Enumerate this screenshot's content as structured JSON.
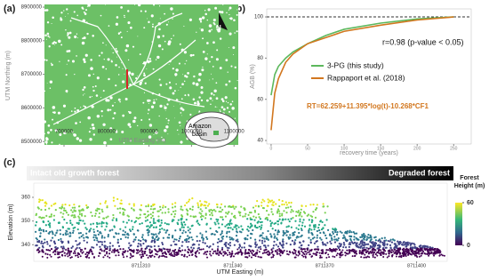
{
  "panel_labels": [
    "(a)",
    "(b)",
    "(c)"
  ],
  "map": {
    "x_label": "UTM Easting (m)",
    "y_label": "UTM Northing (m)",
    "xlim": [
      654000,
      1110000
    ],
    "xticks": [
      700000,
      800000,
      900000,
      1000000,
      1100000
    ],
    "ylim": [
      8490000,
      8908000
    ],
    "yticks": [
      8500000,
      8600000,
      8700000,
      8800000,
      8900000
    ],
    "north_label": "N",
    "inset_label": [
      "Amazon",
      "basin"
    ]
  },
  "chart_data": {
    "type": "line",
    "x_label": "recovery time (years)",
    "y_label": "AGB (%)",
    "x": [
      0,
      5,
      10,
      20,
      30,
      50,
      75,
      100,
      150,
      200,
      250
    ],
    "series": [
      {
        "name": "3-PG (this study)",
        "color": "#5cb85c",
        "values": [
          62,
          72,
          76,
          80,
          83,
          87,
          91,
          94,
          97,
          99,
          100
        ]
      },
      {
        "name": "Rappaport et al. (2018)",
        "color": "#d2771f",
        "values": [
          45,
          63,
          70,
          78,
          82,
          87,
          90,
          93,
          96,
          98.5,
          100
        ]
      }
    ],
    "xlim": [
      -6,
      274
    ],
    "xticks": [
      0,
      50,
      100,
      150,
      200,
      250
    ],
    "ylim": [
      38.3,
      103.9
    ],
    "yticks": [
      40,
      60,
      80,
      100
    ],
    "reference_line": 100,
    "annotations": [
      "r=0.98 (p-value < 0.05)",
      "RT=62.259+11.395*log(t)-10.268*CF1"
    ]
  },
  "point_cloud": {
    "banner_left": "Intact old growth forest",
    "banner_right": "Degraded forest",
    "x_label": "UTM Easting (m)",
    "y_label": "Elevation (m)",
    "xlim": [
      8711275,
      8711410
    ],
    "xticks": [
      8711310,
      8711340,
      8711370,
      8711400
    ],
    "ylim": [
      333,
      366
    ],
    "yticks": [
      340,
      350,
      360
    ],
    "colorbar_title": "Forest Height (m)",
    "colorbar_lim": [
      0,
      60
    ],
    "colorbar_ticks": [
      0,
      60
    ]
  }
}
